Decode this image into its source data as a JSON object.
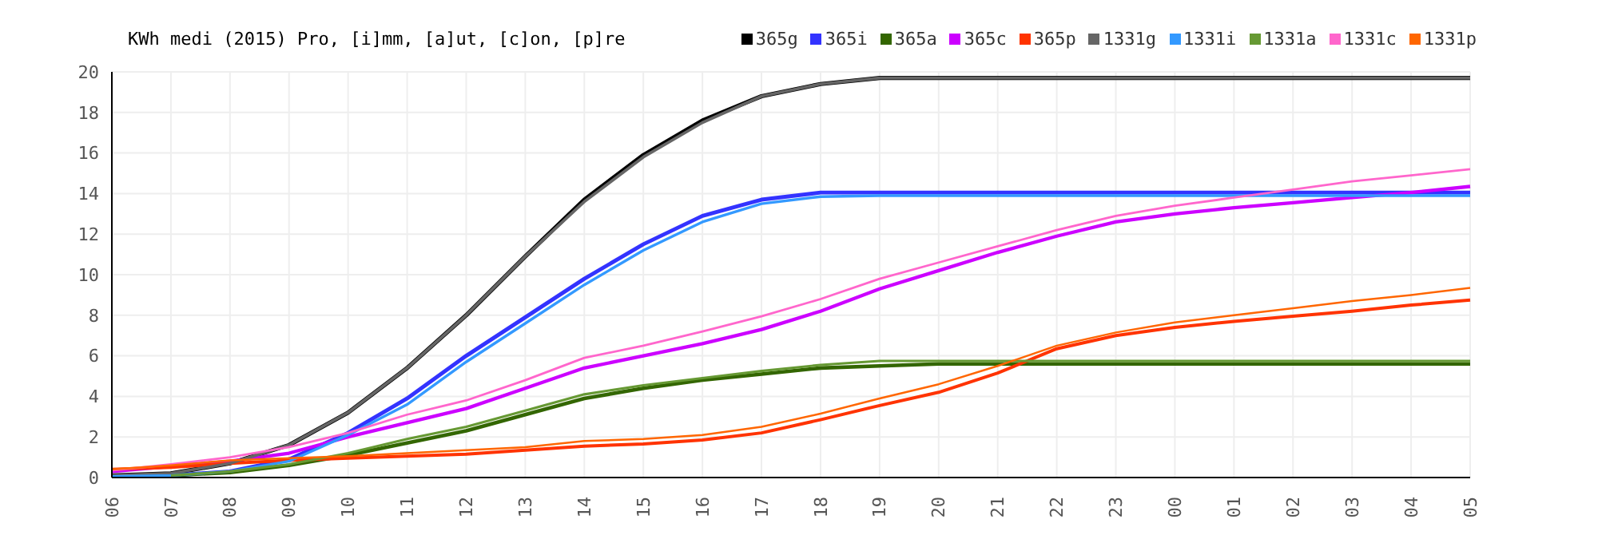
{
  "chart_data": {
    "type": "line",
    "title": "KWh medi (2015) Pro, [i]mm, [a]ut, [c]on, [p]re",
    "categories": [
      "06",
      "07",
      "08",
      "09",
      "10",
      "11",
      "12",
      "13",
      "14",
      "15",
      "16",
      "17",
      "18",
      "19",
      "20",
      "21",
      "22",
      "23",
      "00",
      "01",
      "02",
      "03",
      "04",
      "05"
    ],
    "ylim": [
      0,
      20
    ],
    "yticks": [
      0,
      2,
      4,
      6,
      8,
      10,
      12,
      14,
      16,
      18,
      20
    ],
    "grid": true,
    "legend": "top right",
    "marker": "none",
    "line_style": "solid",
    "series": [
      {
        "name": "365g",
        "color": "#000000",
        "values": [
          0.1,
          0.2,
          0.7,
          1.6,
          3.2,
          5.4,
          8.0,
          10.9,
          13.7,
          15.9,
          17.6,
          18.8,
          19.4,
          19.7,
          19.7,
          19.7,
          19.7,
          19.7,
          19.7,
          19.7,
          19.7,
          19.7,
          19.7,
          19.7
        ]
      },
      {
        "name": "365i",
        "color": "#3333ff",
        "values": [
          0.05,
          0.1,
          0.3,
          0.9,
          2.2,
          3.9,
          6.0,
          7.9,
          9.8,
          11.5,
          12.9,
          13.7,
          14.05,
          14.05,
          14.05,
          14.05,
          14.05,
          14.05,
          14.05,
          14.05,
          14.05,
          14.05,
          14.05,
          14.05
        ]
      },
      {
        "name": "365a",
        "color": "#336600",
        "values": [
          null,
          0.1,
          0.25,
          0.6,
          1.1,
          1.7,
          2.3,
          3.1,
          3.9,
          4.4,
          4.8,
          5.1,
          5.4,
          5.5,
          5.6,
          5.6,
          5.6,
          5.6,
          5.6,
          5.6,
          5.6,
          5.6,
          5.6,
          5.6
        ]
      },
      {
        "name": "365c",
        "color": "#cc00ff",
        "values": [
          0.3,
          0.55,
          0.8,
          1.2,
          2.0,
          2.7,
          3.4,
          4.4,
          5.4,
          6.0,
          6.6,
          7.3,
          8.2,
          9.3,
          10.2,
          11.1,
          11.9,
          12.6,
          13.0,
          13.3,
          13.55,
          13.8,
          14.05,
          14.35
        ]
      },
      {
        "name": "365p",
        "color": "#ff3300",
        "values": [
          0.4,
          0.5,
          0.7,
          0.85,
          0.95,
          1.05,
          1.15,
          1.35,
          1.55,
          1.65,
          1.85,
          2.2,
          2.85,
          3.55,
          4.2,
          5.15,
          6.35,
          7.0,
          7.4,
          7.7,
          7.95,
          8.2,
          8.5,
          8.75
        ]
      },
      {
        "name": "1331g",
        "color": "#666666",
        "values": [
          0.1,
          0.2,
          0.7,
          1.6,
          3.2,
          5.4,
          8.0,
          10.9,
          13.6,
          15.8,
          17.5,
          18.8,
          19.4,
          19.7,
          19.7,
          19.7,
          19.7,
          19.7,
          19.7,
          19.7,
          19.7,
          19.7,
          19.7,
          19.7
        ]
      },
      {
        "name": "1331i",
        "color": "#3399ff",
        "values": [
          0.05,
          0.1,
          0.3,
          0.8,
          2.1,
          3.6,
          5.7,
          7.6,
          9.5,
          11.2,
          12.6,
          13.5,
          13.85,
          13.9,
          13.9,
          13.9,
          13.9,
          13.9,
          13.9,
          13.9,
          13.9,
          13.9,
          13.9,
          13.9
        ]
      },
      {
        "name": "1331a",
        "color": "#669933",
        "values": [
          null,
          0.1,
          0.3,
          0.65,
          1.2,
          1.9,
          2.5,
          3.3,
          4.1,
          4.55,
          4.9,
          5.25,
          5.55,
          5.75,
          5.75,
          5.75,
          5.75,
          5.75,
          5.75,
          5.75,
          5.75,
          5.75,
          5.75,
          5.75
        ]
      },
      {
        "name": "1331c",
        "color": "#ff66cc",
        "values": [
          0.35,
          0.65,
          1.0,
          1.5,
          2.2,
          3.1,
          3.8,
          4.8,
          5.9,
          6.5,
          7.2,
          7.95,
          8.8,
          9.8,
          10.6,
          11.4,
          12.2,
          12.9,
          13.4,
          13.8,
          14.2,
          14.6,
          14.9,
          15.2
        ]
      },
      {
        "name": "1331p",
        "color": "#ff6600",
        "values": [
          0.4,
          0.6,
          0.85,
          0.95,
          1.05,
          1.2,
          1.35,
          1.5,
          1.8,
          1.9,
          2.1,
          2.5,
          3.15,
          3.9,
          4.6,
          5.5,
          6.5,
          7.15,
          7.65,
          8.0,
          8.35,
          8.7,
          9.0,
          9.35
        ]
      }
    ]
  }
}
